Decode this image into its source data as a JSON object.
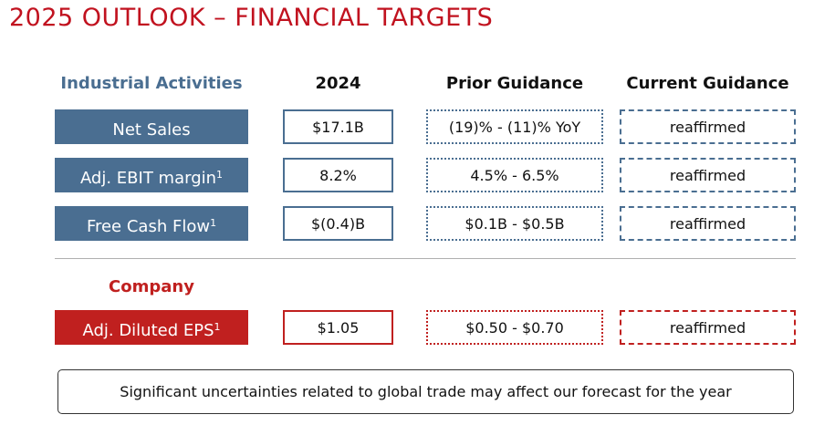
{
  "title": "2025 OUTLOOK – FINANCIAL TARGETS",
  "colors": {
    "title": "#c1121f",
    "blue": "#4a6e91",
    "red": "#c0201f"
  },
  "headers": {
    "section": "Industrial Activities",
    "col_2024": "2024",
    "col_prior": "Prior Guidance",
    "col_current": "Current Guidance"
  },
  "industrial_rows": [
    {
      "label": "Net Sales",
      "footnote": "",
      "y2024": "$17.1B",
      "prior": "(19)% - (11)% YoY",
      "current": "reaffirmed"
    },
    {
      "label": "Adj. EBIT margin",
      "footnote": "1",
      "y2024": "8.2%",
      "prior": "4.5% - 6.5%",
      "current": "reaffirmed"
    },
    {
      "label": "Free Cash Flow",
      "footnote": "1",
      "y2024": "$(0.4)B",
      "prior": "$0.1B - $0.5B",
      "current": "reaffirmed"
    }
  ],
  "company": {
    "section": "Company",
    "row": {
      "label": "Adj. Diluted EPS",
      "footnote": "1",
      "y2024": "$1.05",
      "prior": "$0.50 - $0.70",
      "current": "reaffirmed"
    }
  },
  "note": "Significant uncertainties related to global trade may affect our forecast for the year"
}
